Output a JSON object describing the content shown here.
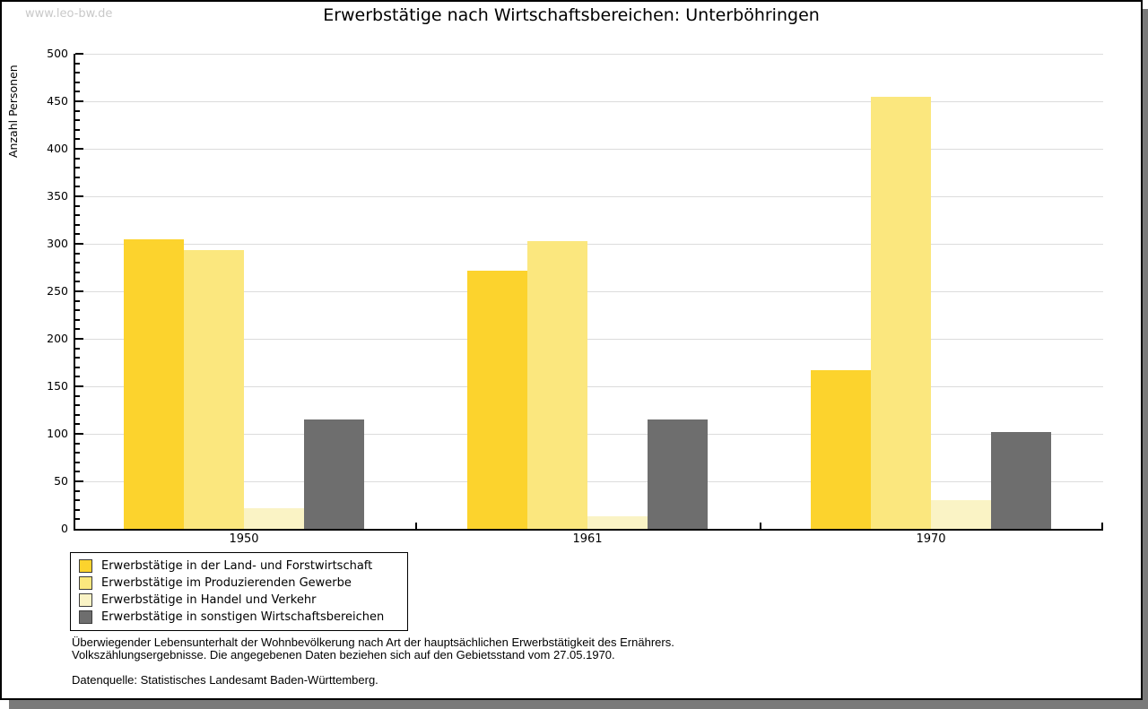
{
  "watermark": "www.leo-bw.de",
  "title": "Erwerbstätige nach Wirtschaftsbereichen: Unterböhringen",
  "chart_data": {
    "type": "bar",
    "title": "Erwerbstätige nach Wirtschaftsbereichen: Unterböhringen",
    "categories": [
      "1950",
      "1961",
      "1970"
    ],
    "series": [
      {
        "name": "Erwerbstätige in der Land- und Forstwirtschaft",
        "color": "#fcd32d",
        "values": [
          305,
          272,
          167
        ]
      },
      {
        "name": "Erwerbstätige im Produzierenden Gewerbe",
        "color": "#fbe77e",
        "values": [
          293,
          303,
          455
        ]
      },
      {
        "name": "Erwerbstätige in Handel und Verkehr",
        "color": "#faf3c5",
        "values": [
          22,
          13,
          30
        ]
      },
      {
        "name": "Erwerbstätige in sonstigen Wirtschaftsbereichen",
        "color": "#6e6e6e",
        "values": [
          115,
          115,
          102
        ]
      }
    ],
    "xlabel": "",
    "ylabel": "Anzahl Personen",
    "ylim": [
      0,
      500
    ],
    "yticks": [
      0,
      50,
      100,
      150,
      200,
      250,
      300,
      350,
      400,
      450,
      500
    ],
    "minor_tick_step": 10,
    "grid": true,
    "legend_position": "bottom-left"
  },
  "footer": {
    "note1": "Überwiegender Lebensunterhalt der Wohnbevölkerung nach Art der hauptsächlichen Erwerbstätigkeit des Ernährers.",
    "note2": "Volkszählungsergebnisse. Die angegebenen Daten beziehen sich auf den Gebietsstand vom 27.05.1970.",
    "source": "Datenquelle: Statistisches Landesamt Baden-Württemberg."
  }
}
